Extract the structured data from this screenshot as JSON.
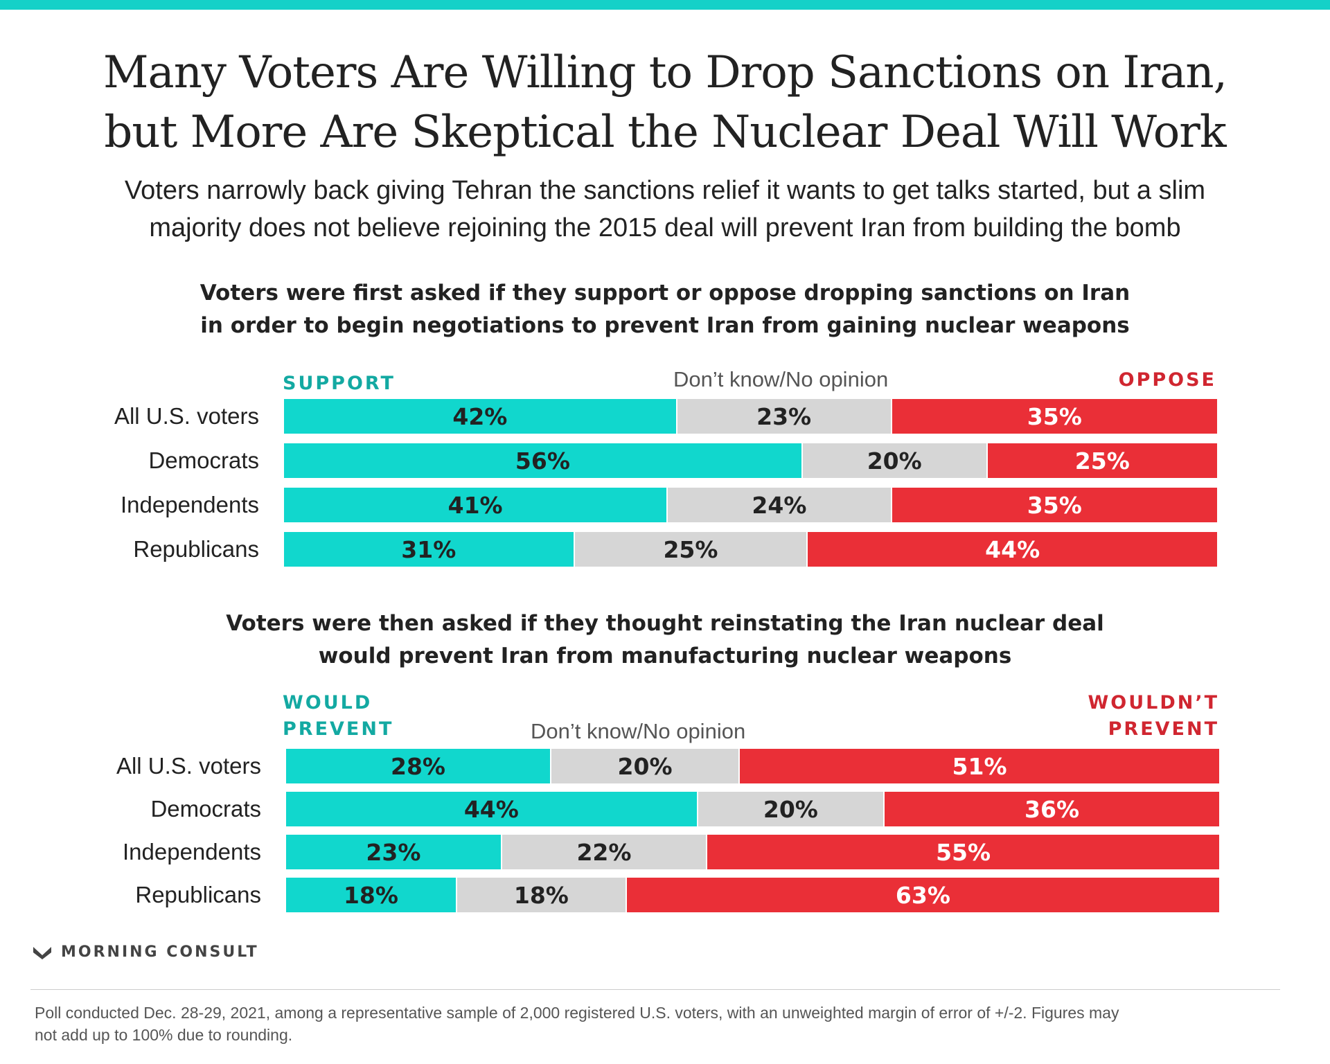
{
  "title": [
    "Many Voters Are Willing to Drop Sanctions on Iran,",
    "but More Are Skeptical the Nuclear Deal Will Work"
  ],
  "subtitle": [
    "Voters narrowly back giving Tehran the sanctions relief it wants to get talks started, but a slim",
    "majority does not believe rejoining the 2015 deal will prevent Iran from building the bomb"
  ],
  "colors": {
    "support": "#11d7cd",
    "dont_know": "#d6d6d6",
    "oppose": "#ea2f37",
    "accent": "#14d1c8"
  },
  "chart_data": [
    {
      "type": "bar",
      "stacked": true,
      "orientation": "horizontal",
      "title": [
        "Voters were first asked if they support or oppose dropping sanctions on Iran",
        "in order to begin negotiations to prevent Iran from gaining nuclear weapons"
      ],
      "legend": {
        "left": [
          "SUPPORT"
        ],
        "middle": "Don’t know/No opinion",
        "right": [
          "OPPOSE"
        ]
      },
      "categories": [
        "All U.S. voters",
        "Democrats",
        "Independents",
        "Republicans"
      ],
      "series": [
        {
          "name": "SUPPORT",
          "values": [
            42,
            56,
            41,
            31
          ]
        },
        {
          "name": "Don’t know/No opinion",
          "values": [
            23,
            20,
            24,
            25
          ]
        },
        {
          "name": "OPPOSE",
          "values": [
            35,
            25,
            35,
            44
          ]
        }
      ],
      "unit": "%"
    },
    {
      "type": "bar",
      "stacked": true,
      "orientation": "horizontal",
      "title": [
        "Voters were then asked if they thought reinstating the Iran nuclear deal",
        "would prevent Iran from manufacturing nuclear weapons"
      ],
      "legend": {
        "left": [
          "WOULD",
          "PREVENT"
        ],
        "middle": "Don’t know/No opinion",
        "right": [
          "WOULDN’T",
          "PREVENT"
        ]
      },
      "categories": [
        "All U.S. voters",
        "Democrats",
        "Independents",
        "Republicans"
      ],
      "series": [
        {
          "name": "WOULD PREVENT",
          "values": [
            28,
            44,
            23,
            18
          ]
        },
        {
          "name": "Don’t know/No opinion",
          "values": [
            20,
            20,
            22,
            18
          ]
        },
        {
          "name": "WOULDN’T PREVENT",
          "values": [
            51,
            36,
            55,
            63
          ]
        }
      ],
      "unit": "%"
    }
  ],
  "logo_text": "MORNING CONSULT",
  "footnote": [
    "Poll conducted Dec. 28-29, 2021, among a representative sample of 2,000 registered U.S. voters, with an unweighted margin of error of +/-2. Figures may",
    "not add up to 100% due to rounding."
  ]
}
